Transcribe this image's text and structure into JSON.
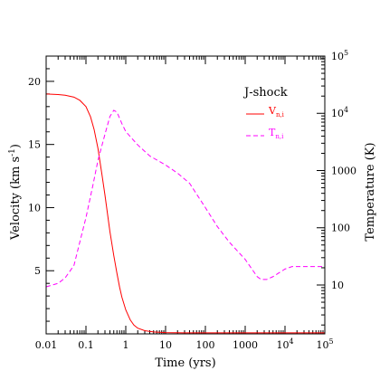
{
  "chart_data": {
    "type": "line",
    "xlabel": "Time (yrs)",
    "ylabel_left": "Velocity (km s",
    "ylabel_left_sup": "-1",
    "ylabel_left_end": ")",
    "ylabel_right": "Temperature (K)",
    "x_scale": "log",
    "xlim": [
      0.01,
      100000
    ],
    "ylim_left": [
      0,
      22
    ],
    "ylim_right_log": [
      1.4,
      100000
    ],
    "x_ticks": [
      {
        "v": 0.01,
        "label": "0.01"
      },
      {
        "v": 0.1,
        "label": "0.1"
      },
      {
        "v": 1,
        "label": "1"
      },
      {
        "v": 10,
        "label": "10"
      },
      {
        "v": 100,
        "label": "100"
      },
      {
        "v": 1000,
        "label": "1000"
      },
      {
        "v": 10000,
        "label": "10",
        "sup": "4"
      },
      {
        "v": 100000,
        "label": "10",
        "sup": "5"
      }
    ],
    "y_left_ticks": [
      {
        "v": 5,
        "label": "5"
      },
      {
        "v": 10,
        "label": "10"
      },
      {
        "v": 15,
        "label": "15"
      },
      {
        "v": 20,
        "label": "20"
      }
    ],
    "y_right_ticks": [
      {
        "v": 10,
        "label": "10"
      },
      {
        "v": 100,
        "label": "100"
      },
      {
        "v": 1000,
        "label": "1000"
      },
      {
        "v": 10000,
        "label": "10",
        "sup": "4"
      },
      {
        "v": 100000,
        "label": "10",
        "sup": "5"
      }
    ],
    "legend": {
      "title": "J-shock",
      "placement": "top-right",
      "entries": [
        {
          "label": "V",
          "sub": "n,i",
          "series": 0
        },
        {
          "label": "T",
          "sub": "n,i",
          "series": 1
        }
      ]
    },
    "series": [
      {
        "axis": "left",
        "color": "#ff0000",
        "style": "solid",
        "points": [
          [
            0.01,
            19.0
          ],
          [
            0.02,
            18.95
          ],
          [
            0.03,
            18.9
          ],
          [
            0.05,
            18.75
          ],
          [
            0.07,
            18.5
          ],
          [
            0.1,
            18.0
          ],
          [
            0.13,
            17.2
          ],
          [
            0.16,
            16.2
          ],
          [
            0.2,
            14.7
          ],
          [
            0.25,
            12.7
          ],
          [
            0.3,
            11.0
          ],
          [
            0.4,
            8.1
          ],
          [
            0.5,
            6.2
          ],
          [
            0.6,
            4.8
          ],
          [
            0.7,
            3.7
          ],
          [
            0.8,
            2.9
          ],
          [
            1.0,
            1.9
          ],
          [
            1.3,
            1.1
          ],
          [
            1.6,
            0.7
          ],
          [
            2.0,
            0.45
          ],
          [
            3.0,
            0.25
          ],
          [
            5.0,
            0.15
          ],
          [
            10,
            0.1
          ],
          [
            30,
            0.08
          ],
          [
            100,
            0.08
          ],
          [
            1000,
            0.08
          ],
          [
            100000,
            0.08
          ]
        ]
      },
      {
        "axis": "right",
        "color": "#ff00ff",
        "style": "dashed",
        "points": [
          [
            0.01,
            9.3
          ],
          [
            0.02,
            10.7
          ],
          [
            0.03,
            13.3
          ],
          [
            0.05,
            22
          ],
          [
            0.07,
            56
          ],
          [
            0.1,
            150
          ],
          [
            0.15,
            560
          ],
          [
            0.2,
            1500
          ],
          [
            0.3,
            4300
          ],
          [
            0.4,
            8800
          ],
          [
            0.5,
            11300
          ],
          [
            0.6,
            10500
          ],
          [
            0.8,
            6600
          ],
          [
            1.0,
            4800
          ],
          [
            2.0,
            2800
          ],
          [
            4.0,
            1800
          ],
          [
            10,
            1250
          ],
          [
            20,
            900
          ],
          [
            40,
            600
          ],
          [
            100,
            225
          ],
          [
            200,
            105
          ],
          [
            400,
            56
          ],
          [
            1000,
            28
          ],
          [
            2000,
            14
          ],
          [
            2500,
            12.5
          ],
          [
            3500,
            12.5
          ],
          [
            5000,
            14
          ],
          [
            10000,
            19
          ],
          [
            15000,
            21
          ],
          [
            30000,
            21
          ],
          [
            100000,
            21
          ]
        ]
      }
    ]
  }
}
